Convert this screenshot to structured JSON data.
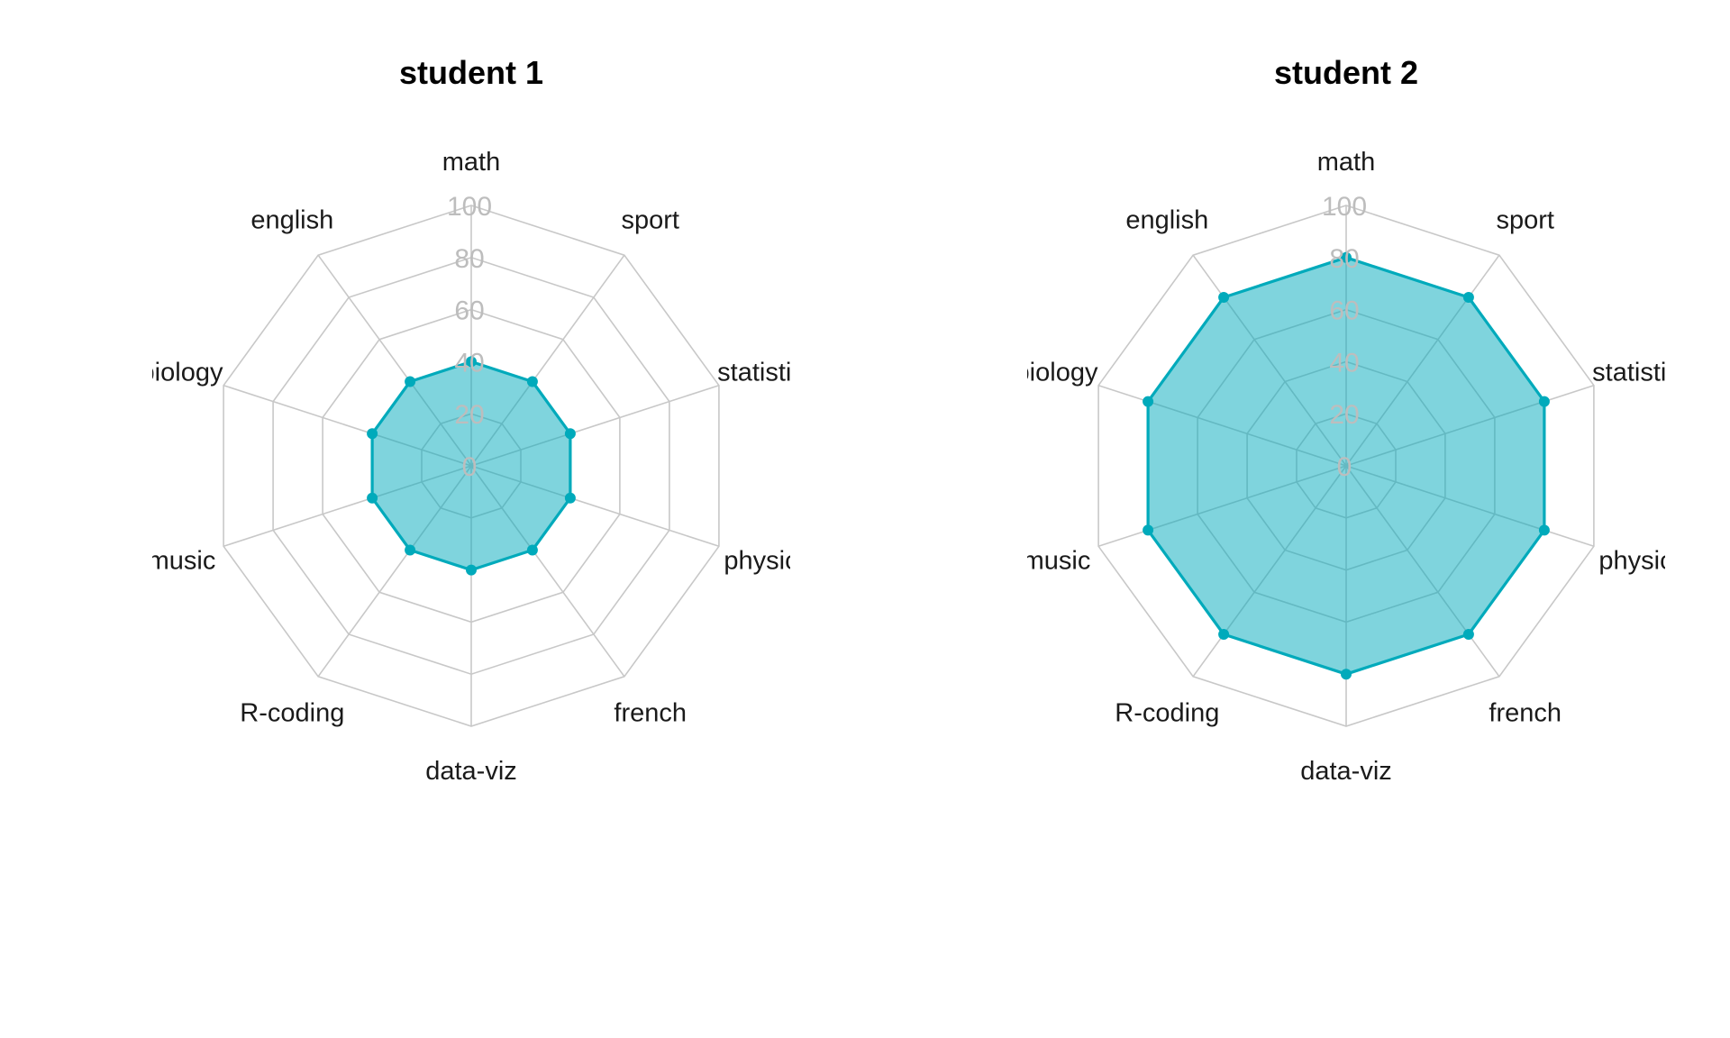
{
  "chart_data": [
    {
      "type": "radar",
      "title": "student 1",
      "axes": [
        "math",
        "sport",
        "statistics",
        "physics",
        "french",
        "data-viz",
        "R-coding",
        "music",
        "biology",
        "english"
      ],
      "axis_label_text": [
        "math",
        "sport",
        "statistic",
        "physic",
        "french",
        "data-viz",
        "R-coding",
        "music",
        "biology",
        "english"
      ],
      "values": [
        40,
        40,
        40,
        40,
        40,
        40,
        40,
        40,
        40,
        40
      ],
      "rlim": [
        0,
        100
      ],
      "ticks": [
        "0",
        "20",
        "40",
        "60",
        "80",
        "100"
      ],
      "tick_values": [
        0,
        20,
        40,
        60,
        80,
        100
      ]
    },
    {
      "type": "radar",
      "title": "student 2",
      "axes": [
        "math",
        "sport",
        "statistics",
        "physics",
        "french",
        "data-viz",
        "R-coding",
        "music",
        "biology",
        "english"
      ],
      "axis_label_text": [
        "math",
        "sport",
        "statistic",
        "physic",
        "french",
        "data-viz",
        "R-coding",
        "music",
        "biology",
        "english"
      ],
      "values": [
        80,
        80,
        80,
        80,
        80,
        80,
        80,
        80,
        80,
        80
      ],
      "rlim": [
        0,
        100
      ],
      "ticks": [
        "0",
        "20",
        "40",
        "60",
        "80",
        "100"
      ],
      "tick_values": [
        0,
        20,
        40,
        60,
        80,
        100
      ]
    }
  ],
  "colors": {
    "series_line": "#00aabb",
    "series_fill": "#00aabb",
    "grid": "#c8c8c8",
    "tick_text": "#bdbdbd"
  }
}
